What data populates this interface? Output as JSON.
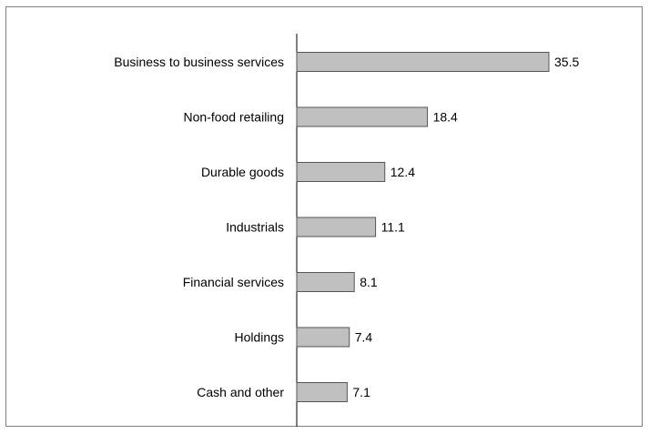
{
  "chart_data": {
    "type": "bar",
    "orientation": "horizontal",
    "categories": [
      "Business to business services",
      "Non-food retailing",
      "Durable goods",
      "Industrials",
      "Financial services",
      "Holdings",
      "Cash and other"
    ],
    "values": [
      35.5,
      18.4,
      12.4,
      11.1,
      8.1,
      7.4,
      7.1
    ],
    "value_labels": [
      "35.5",
      "18.4",
      "12.4",
      "11.1",
      "8.1",
      "7.4",
      "7.1"
    ],
    "title": "",
    "xlabel": "",
    "ylabel": "",
    "xlim": [
      0,
      36
    ],
    "grid": false,
    "legend": "none",
    "colors": {
      "bar_fill": "#c0c0c0",
      "bar_stroke": "#555555",
      "axis": "#000000",
      "frame": "#808080"
    }
  }
}
